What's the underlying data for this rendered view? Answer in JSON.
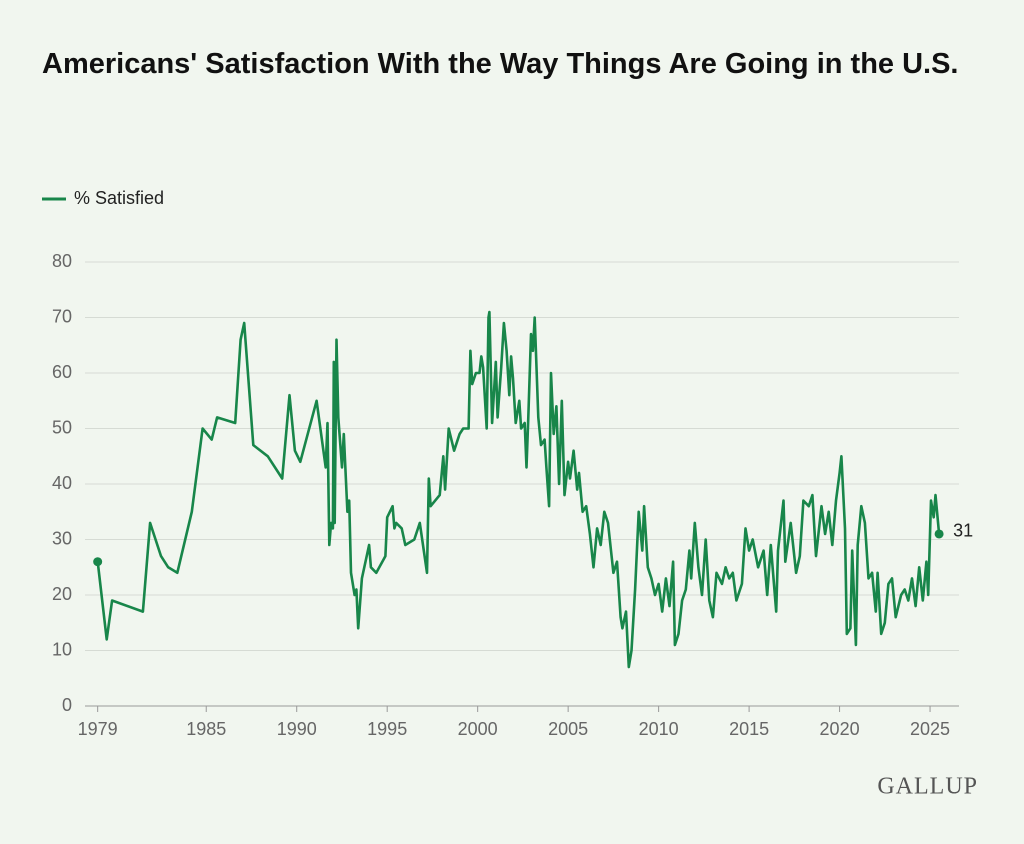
{
  "chart_data": {
    "type": "line",
    "title": "Americans' Satisfaction With the Way Things Are Going in the U.S.",
    "xlim": [
      1978.3,
      2026.6
    ],
    "xticks": [
      1979,
      1985,
      1990,
      1995,
      2000,
      2005,
      2010,
      2015,
      2020,
      2025
    ],
    "ylim": [
      0,
      80
    ],
    "yticks": [
      0,
      10,
      20,
      30,
      40,
      50,
      60,
      70,
      80
    ],
    "grid": true,
    "x": [
      1979.0,
      1979.5,
      1979.8,
      1981.5,
      1981.9,
      1982.5,
      1982.9,
      1983.4,
      1984.2,
      1984.8,
      1985.3,
      1985.6,
      1986.6,
      1986.9,
      1987.1,
      1987.6,
      1988.4,
      1989.2,
      1989.6,
      1989.9,
      1990.2,
      1991.1,
      1991.6,
      1991.7,
      1991.8,
      1991.9,
      1992.0,
      1992.05,
      1992.1,
      1992.2,
      1992.3,
      1992.5,
      1992.6,
      1992.8,
      1992.9,
      1993.0,
      1993.2,
      1993.3,
      1993.4,
      1993.6,
      1994.0,
      1994.1,
      1994.4,
      1994.9,
      1995.0,
      1995.3,
      1995.4,
      1995.5,
      1995.8,
      1996.0,
      1996.5,
      1996.8,
      1997.2,
      1997.3,
      1997.4,
      1997.9,
      1998.1,
      1998.2,
      1998.4,
      1998.7,
      1999.0,
      1999.2,
      1999.5,
      1999.6,
      1999.7,
      1999.9,
      2000.1,
      2000.2,
      2000.3,
      2000.5,
      2000.6,
      2000.65,
      2000.8,
      2001.0,
      2001.1,
      2001.3,
      2001.45,
      2001.6,
      2001.75,
      2001.85,
      2001.95,
      2002.1,
      2002.3,
      2002.4,
      2002.6,
      2002.7,
      2002.8,
      2002.95,
      2003.05,
      2003.15,
      2003.35,
      2003.5,
      2003.7,
      2003.8,
      2003.95,
      2004.05,
      2004.2,
      2004.35,
      2004.5,
      2004.65,
      2004.8,
      2005.0,
      2005.1,
      2005.3,
      2005.5,
      2005.6,
      2005.8,
      2006.0,
      2006.2,
      2006.4,
      2006.6,
      2006.8,
      2007.0,
      2007.2,
      2007.4,
      2007.5,
      2007.7,
      2007.9,
      2008.0,
      2008.2,
      2008.35,
      2008.5,
      2008.7,
      2008.9,
      2009.1,
      2009.2,
      2009.4,
      2009.6,
      2009.8,
      2010.0,
      2010.2,
      2010.4,
      2010.6,
      2010.8,
      2010.9,
      2011.1,
      2011.3,
      2011.5,
      2011.7,
      2011.8,
      2012.0,
      2012.2,
      2012.4,
      2012.6,
      2012.8,
      2013.0,
      2013.2,
      2013.5,
      2013.7,
      2013.9,
      2014.1,
      2014.3,
      2014.6,
      2014.8,
      2015.0,
      2015.2,
      2015.5,
      2015.8,
      2016.0,
      2016.2,
      2016.5,
      2016.6,
      2016.9,
      2017.0,
      2017.3,
      2017.6,
      2017.8,
      2018.0,
      2018.3,
      2018.5,
      2018.7,
      2019.0,
      2019.2,
      2019.4,
      2019.6,
      2019.8,
      2020.0,
      2020.1,
      2020.3,
      2020.4,
      2020.6,
      2020.7,
      2020.9,
      2021.0,
      2021.2,
      2021.4,
      2021.6,
      2021.8,
      2022.0,
      2022.1,
      2022.3,
      2022.5,
      2022.7,
      2022.9,
      2023.1,
      2023.4,
      2023.6,
      2023.8,
      2024.0,
      2024.2,
      2024.4,
      2024.6,
      2024.8,
      2024.9,
      2025.05,
      2025.2,
      2025.3,
      2025.5
    ],
    "series": [
      {
        "name": "% Satisfied",
        "color": "#18864a",
        "values": [
          26,
          12,
          19,
          17,
          33,
          27,
          25,
          24,
          35,
          50,
          48,
          52,
          51,
          66,
          69,
          47,
          45,
          41,
          56,
          46,
          44,
          55,
          43,
          51,
          29,
          33,
          32,
          62,
          33,
          66,
          52,
          43,
          49,
          35,
          37,
          24,
          20,
          21,
          14,
          23,
          29,
          25,
          24,
          27,
          34,
          36,
          32,
          33,
          32,
          29,
          30,
          33,
          24,
          41,
          36,
          38,
          45,
          39,
          50,
          46,
          49,
          50,
          50,
          64,
          58,
          60,
          60,
          63,
          61,
          50,
          70,
          71,
          51,
          62,
          52,
          61,
          69,
          64,
          56,
          63,
          59,
          51,
          55,
          50,
          51,
          43,
          52,
          67,
          64,
          70,
          52,
          47,
          48,
          43,
          36,
          60,
          49,
          54,
          40,
          55,
          38,
          44,
          41,
          46,
          39,
          42,
          35,
          36,
          31,
          25,
          32,
          29,
          35,
          33,
          27,
          24,
          26,
          16,
          14,
          17,
          7,
          10,
          21,
          35,
          28,
          36,
          25,
          23,
          20,
          22,
          17,
          23,
          18,
          26,
          11,
          13,
          19,
          21,
          28,
          23,
          33,
          25,
          20,
          30,
          19,
          16,
          24,
          22,
          25,
          23,
          24,
          19,
          22,
          32,
          28,
          30,
          25,
          28,
          20,
          29,
          17,
          28,
          37,
          26,
          33,
          24,
          27,
          37,
          36,
          38,
          27,
          36,
          31,
          35,
          29,
          37,
          42,
          45,
          32,
          13,
          14,
          28,
          11,
          29,
          36,
          33,
          23,
          24,
          17,
          24,
          13,
          15,
          22,
          23,
          16,
          20,
          21,
          19,
          23,
          18,
          25,
          19,
          26,
          20,
          37,
          34,
          38,
          31
        ]
      }
    ]
  },
  "logo": "GALLUP"
}
